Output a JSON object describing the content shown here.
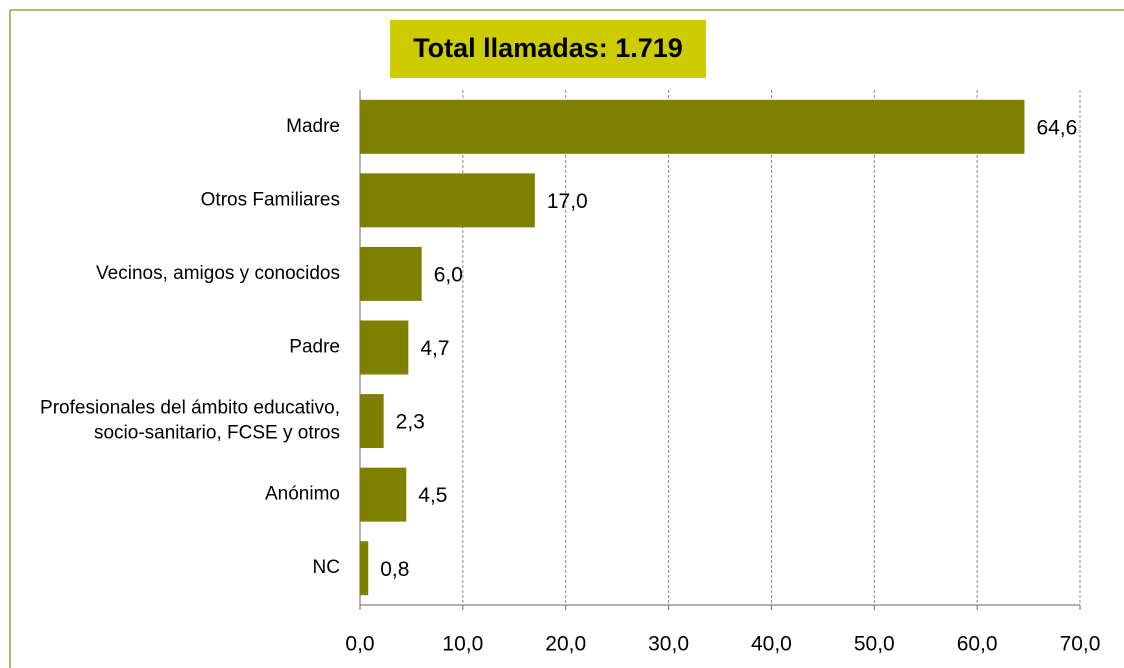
{
  "chart_data": {
    "type": "barh",
    "title": "Total llamadas:  1.719",
    "categories": [
      "Madre",
      "Otros Familiares",
      "Vecinos, amigos y conocidos",
      "Padre",
      "Profesionales del ámbito educativo, socio-sanitario, FCSE y otros",
      "Anónimo",
      "NC"
    ],
    "values": [
      64.6,
      17.0,
      6.0,
      4.7,
      2.3,
      4.5,
      0.8
    ],
    "value_labels": [
      "64,6",
      "17,0",
      "6,0",
      "4,7",
      "2,3",
      "4,5",
      "0,8"
    ],
    "color": "#808000",
    "xlim": [
      0,
      70
    ],
    "xticks": [
      {
        "value": 0,
        "label": "0,0"
      },
      {
        "value": 10,
        "label": "10,0"
      },
      {
        "value": 20,
        "label": "20,0"
      },
      {
        "value": 30,
        "label": "30,0"
      },
      {
        "value": 40,
        "label": "40,0"
      },
      {
        "value": 50,
        "label": "50,0"
      },
      {
        "value": 60,
        "label": "60,0"
      },
      {
        "value": 70,
        "label": "70,0"
      }
    ],
    "grid": true
  }
}
